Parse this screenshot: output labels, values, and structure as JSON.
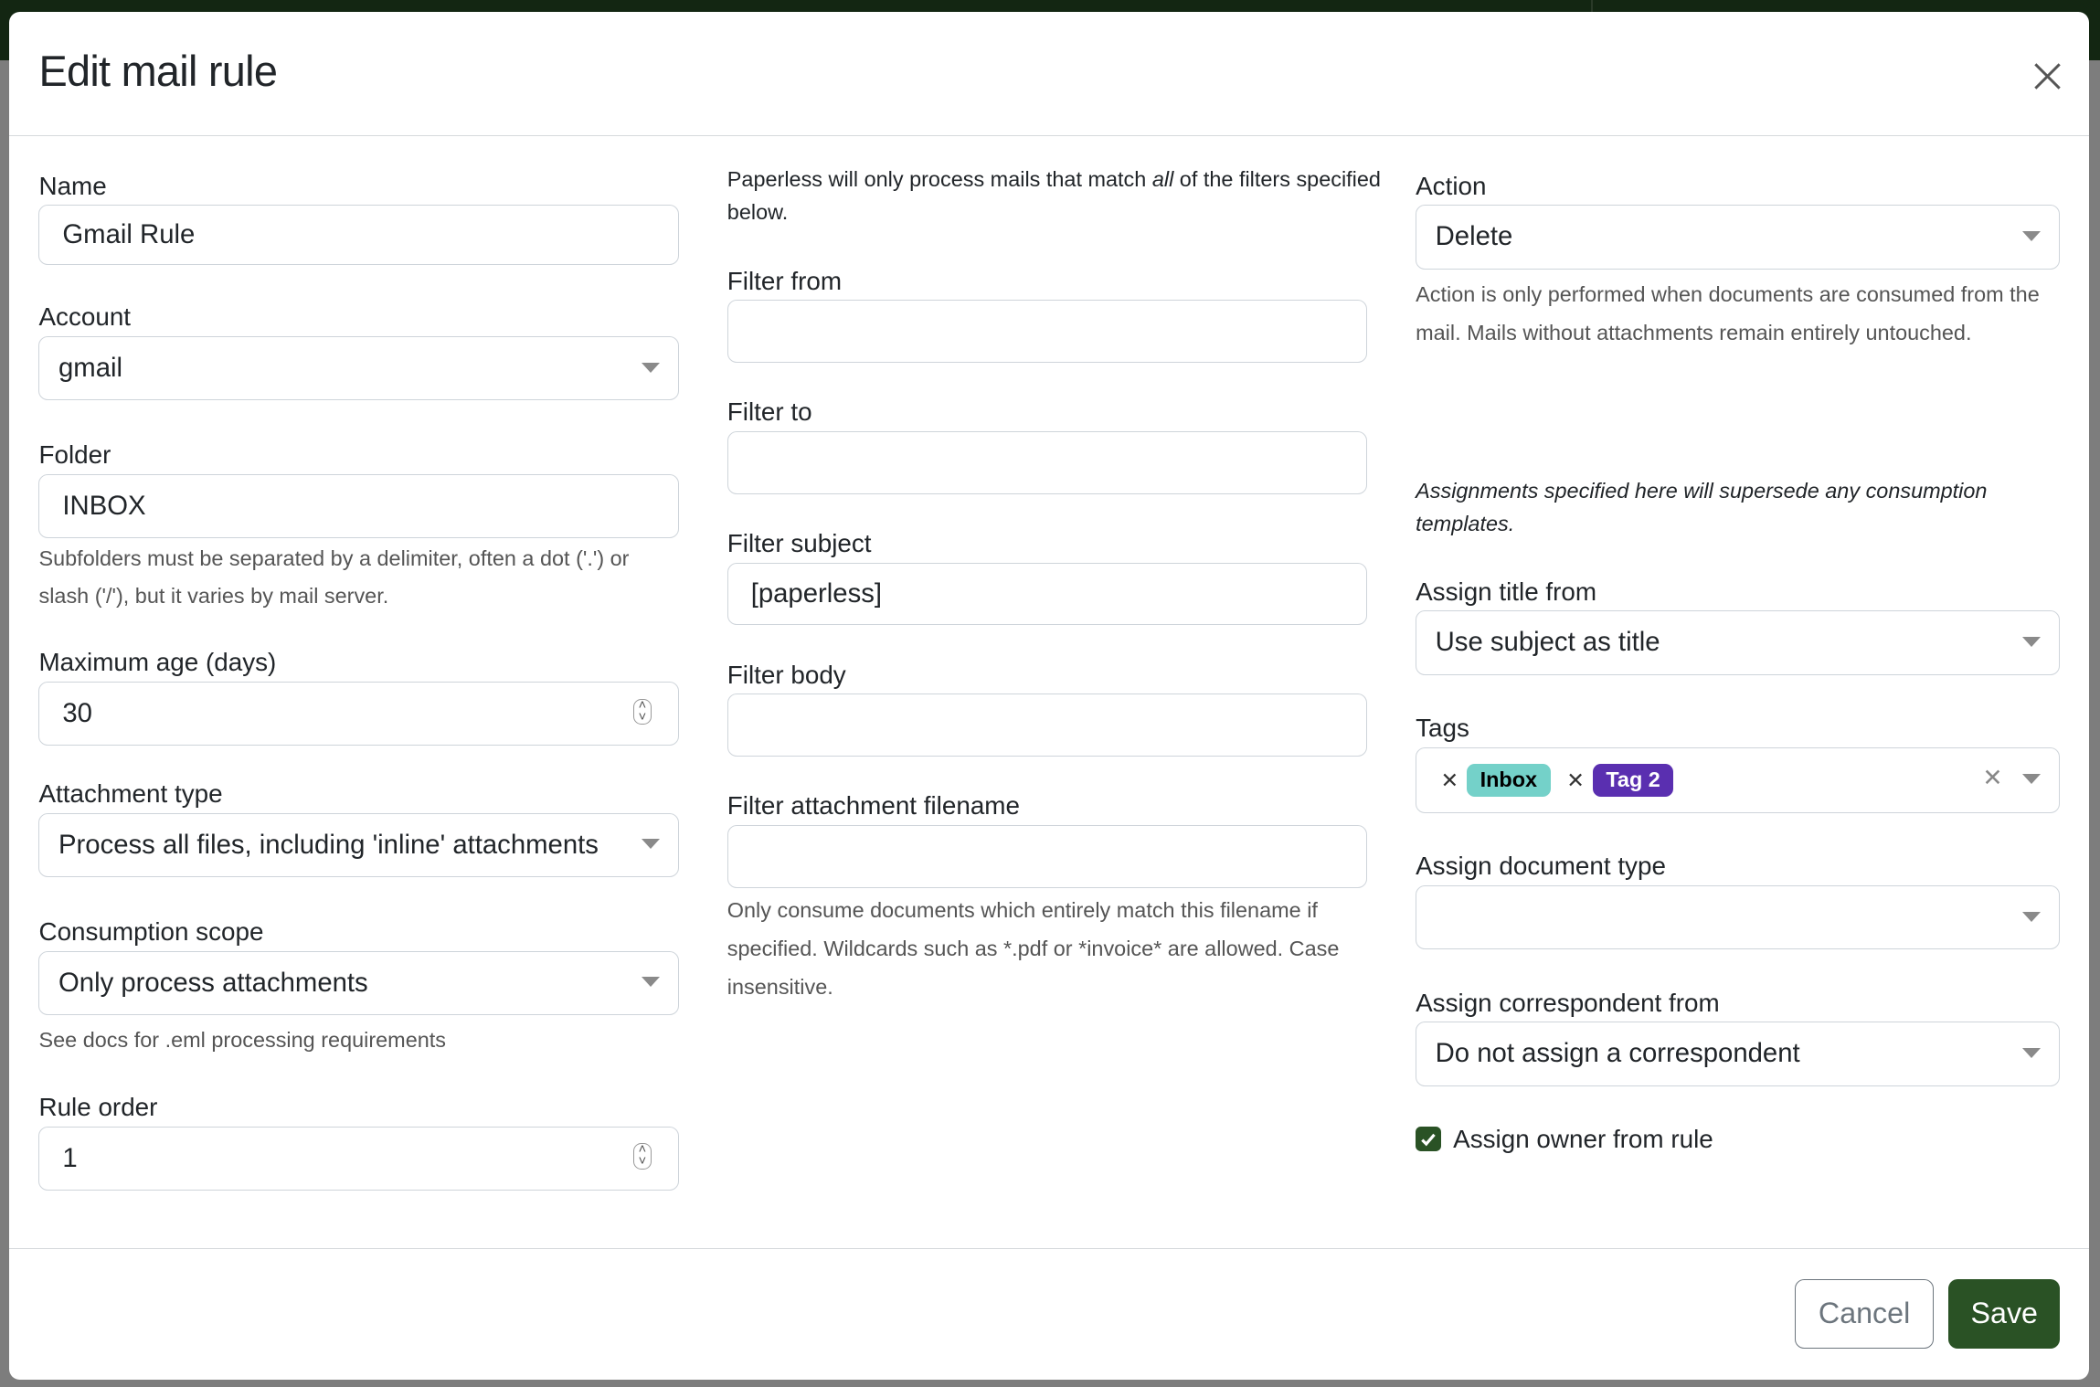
{
  "modal": {
    "title": "Edit mail rule"
  },
  "col1": {
    "name": {
      "label": "Name",
      "value": "Gmail Rule"
    },
    "account": {
      "label": "Account",
      "value": "gmail"
    },
    "folder": {
      "label": "Folder",
      "value": "INBOX",
      "help": "Subfolders must be separated by a delimiter, often a dot ('.') or slash ('/'), but it varies by mail server."
    },
    "max_age": {
      "label": "Maximum age (days)",
      "value": "30"
    },
    "attachment_type": {
      "label": "Attachment type",
      "value": "Process all files, including 'inline' attachments"
    },
    "consumption_scope": {
      "label": "Consumption scope",
      "value": "Only process attachments",
      "help": "See docs for .eml processing requirements"
    },
    "rule_order": {
      "label": "Rule order",
      "value": "1"
    }
  },
  "col2": {
    "intro_pre": "Paperless will only process mails that match ",
    "intro_em": "all",
    "intro_post": " of the filters specified below.",
    "filter_from": {
      "label": "Filter from",
      "value": ""
    },
    "filter_to": {
      "label": "Filter to",
      "value": ""
    },
    "filter_subject": {
      "label": "Filter subject",
      "value": "[paperless]"
    },
    "filter_body": {
      "label": "Filter body",
      "value": ""
    },
    "filter_attachment": {
      "label": "Filter attachment filename",
      "value": "",
      "help": "Only consume documents which entirely match this filename if specified. Wildcards such as *.pdf or *invoice* are allowed. Case insensitive."
    }
  },
  "col3": {
    "action": {
      "label": "Action",
      "value": "Delete",
      "help": "Action is only performed when documents are consumed from the mail. Mails without attachments remain entirely untouched."
    },
    "assign_note": "Assignments specified here will supersede any consumption templates.",
    "assign_title": {
      "label": "Assign title from",
      "value": "Use subject as title"
    },
    "tags": {
      "label": "Tags",
      "items": [
        {
          "label": "Inbox",
          "bg": "#74d1c9",
          "fg": "#000000"
        },
        {
          "label": "Tag 2",
          "bg": "#5a2fb0",
          "fg": "#ffffff"
        }
      ]
    },
    "doc_type": {
      "label": "Assign document type",
      "value": ""
    },
    "correspondent": {
      "label": "Assign correspondent from",
      "value": "Do not assign a correspondent"
    },
    "owner": {
      "label": "Assign owner from rule",
      "checked": true
    }
  },
  "footer": {
    "cancel": "Cancel",
    "save": "Save"
  },
  "colors": {
    "primary": "#2a5225"
  }
}
